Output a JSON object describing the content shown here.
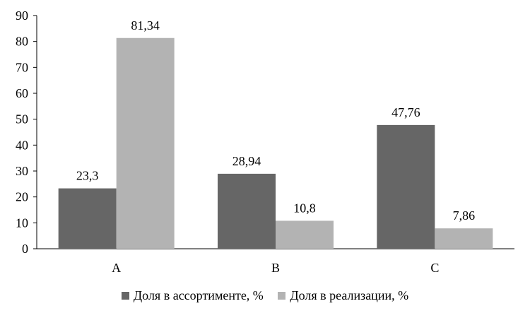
{
  "chart_data": {
    "type": "bar",
    "title": "",
    "xlabel": "",
    "ylabel": "",
    "categories": [
      "A",
      "B",
      "C"
    ],
    "series": [
      {
        "name": "Доля в ассортименте, %",
        "values": [
          23.3,
          28.94,
          47.76
        ],
        "labels": [
          "23,3",
          "28,94",
          "47,76"
        ],
        "color": "#666666"
      },
      {
        "name": "Доля в реализации, %",
        "values": [
          81.34,
          10.8,
          7.86
        ],
        "labels": [
          "81,34",
          "10,8",
          "7,86"
        ],
        "color": "#b3b3b3"
      }
    ],
    "ylim": [
      0,
      90
    ],
    "yticks": [
      0,
      10,
      20,
      30,
      40,
      50,
      60,
      70,
      80,
      90
    ],
    "grid": false,
    "legend_position": "bottom"
  }
}
